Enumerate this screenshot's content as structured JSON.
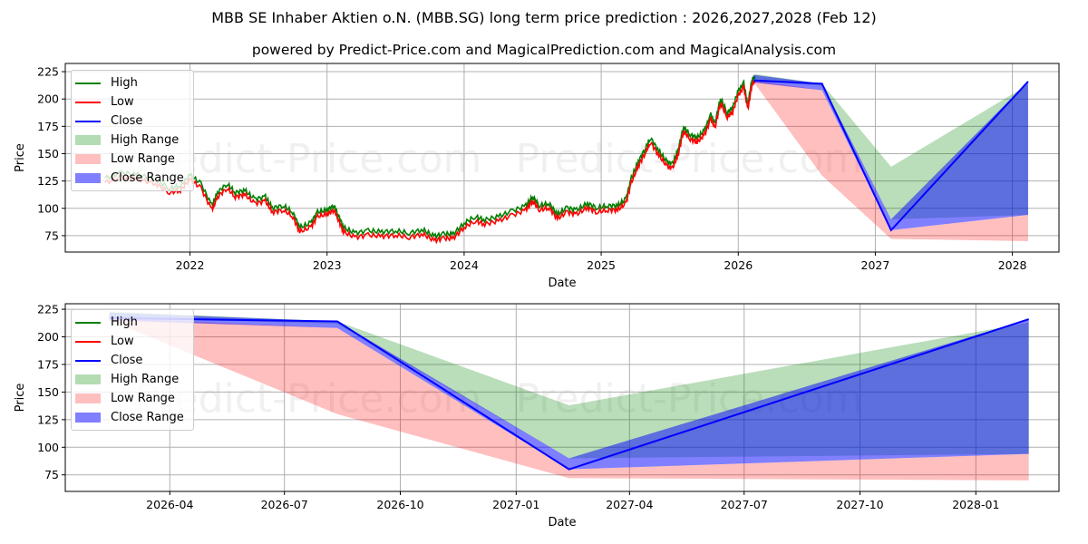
{
  "chart_data": [
    {
      "type": "line",
      "title": "MBB SE Inhaber Aktien o.N. (MBB.SG) long term price prediction : 2026,2027,2028 (Feb 12)",
      "subtitle": "powered by Predict-Price.com and MagicalPrediction.com and MagicalAnalysis.com",
      "watermark": "Predict-Price.com",
      "xlabel": "Date",
      "ylabel": "Price",
      "xlim": [
        2021.09,
        2028.34
      ],
      "ylim": [
        60,
        232.5
      ],
      "xticks": [
        {
          "v": 2022,
          "label": "2022"
        },
        {
          "v": 2023,
          "label": "2023"
        },
        {
          "v": 2024,
          "label": "2024"
        },
        {
          "v": 2025,
          "label": "2025"
        },
        {
          "v": 2026,
          "label": "2026"
        },
        {
          "v": 2027,
          "label": "2027"
        },
        {
          "v": 2028,
          "label": "2028"
        }
      ],
      "yticks": [
        75,
        100,
        125,
        150,
        175,
        200,
        225
      ],
      "grid": true,
      "legend_position": "top-left",
      "history": [
        [
          2021.38,
          125
        ],
        [
          2021.5,
          130
        ],
        [
          2021.62,
          128
        ],
        [
          2021.75,
          124
        ],
        [
          2021.85,
          116
        ],
        [
          2021.93,
          118
        ],
        [
          2022.0,
          128
        ],
        [
          2022.08,
          120
        ],
        [
          2022.16,
          100
        ],
        [
          2022.2,
          112
        ],
        [
          2022.27,
          120
        ],
        [
          2022.33,
          112
        ],
        [
          2022.4,
          114
        ],
        [
          2022.47,
          106
        ],
        [
          2022.55,
          108
        ],
        [
          2022.6,
          98
        ],
        [
          2022.68,
          100
        ],
        [
          2022.75,
          94
        ],
        [
          2022.8,
          80
        ],
        [
          2022.88,
          84
        ],
        [
          2022.93,
          94
        ],
        [
          2023.0,
          96
        ],
        [
          2023.05,
          100
        ],
        [
          2023.08,
          92
        ],
        [
          2023.12,
          80
        ],
        [
          2023.2,
          75
        ],
        [
          2023.3,
          77
        ],
        [
          2023.4,
          76
        ],
        [
          2023.5,
          77
        ],
        [
          2023.6,
          75
        ],
        [
          2023.7,
          78
        ],
        [
          2023.78,
          72
        ],
        [
          2023.85,
          74
        ],
        [
          2023.92,
          74
        ],
        [
          2024.0,
          84
        ],
        [
          2024.08,
          90
        ],
        [
          2024.15,
          87
        ],
        [
          2024.25,
          90
        ],
        [
          2024.35,
          95
        ],
        [
          2024.45,
          100
        ],
        [
          2024.5,
          108
        ],
        [
          2024.55,
          100
        ],
        [
          2024.62,
          102
        ],
        [
          2024.68,
          92
        ],
        [
          2024.75,
          98
        ],
        [
          2024.82,
          96
        ],
        [
          2024.9,
          102
        ],
        [
          2024.97,
          98
        ],
        [
          2025.05,
          100
        ],
        [
          2025.12,
          100
        ],
        [
          2025.18,
          106
        ],
        [
          2025.22,
          125
        ],
        [
          2025.27,
          140
        ],
        [
          2025.32,
          152
        ],
        [
          2025.36,
          162
        ],
        [
          2025.42,
          150
        ],
        [
          2025.48,
          140
        ],
        [
          2025.52,
          138
        ],
        [
          2025.56,
          150
        ],
        [
          2025.6,
          172
        ],
        [
          2025.65,
          165
        ],
        [
          2025.7,
          162
        ],
        [
          2025.75,
          168
        ],
        [
          2025.8,
          183
        ],
        [
          2025.83,
          175
        ],
        [
          2025.87,
          198
        ],
        [
          2025.92,
          185
        ],
        [
          2025.96,
          190
        ],
        [
          2026.0,
          205
        ],
        [
          2026.04,
          212
        ],
        [
          2026.07,
          192
        ],
        [
          2026.1,
          215
        ],
        [
          2026.12,
          218
        ]
      ],
      "prediction": {
        "dates": [
          "2026-02-12",
          "2026-08-12",
          "2027-02-12",
          "2028-02-12"
        ],
        "close": [
          217,
          214,
          80,
          216
        ],
        "close_range": [
          [
            215,
            222
          ],
          [
            208,
            214
          ],
          [
            80,
            90
          ],
          [
            94,
            216
          ]
        ],
        "high_range": [
          [
            217,
            223
          ],
          [
            212,
            214
          ],
          [
            90,
            138
          ],
          [
            94,
            213
          ]
        ],
        "low_range": [
          [
            215,
            217
          ],
          [
            130,
            208
          ],
          [
            72,
            80
          ],
          [
            70,
            94
          ]
        ]
      }
    },
    {
      "type": "line",
      "xlabel": "Date",
      "ylabel": "Price",
      "xlim": [
        "2026-01-08",
        "2028-03-07"
      ],
      "ylim": [
        60,
        230
      ],
      "xticks": [
        "2026-04",
        "2026-07",
        "2026-10",
        "2027-01",
        "2027-04",
        "2027-07",
        "2027-10",
        "2028-01"
      ],
      "yticks": [
        75,
        100,
        125,
        150,
        175,
        200,
        225
      ],
      "grid": true,
      "legend_position": "top-left"
    }
  ],
  "legend": {
    "items": [
      {
        "label": "High",
        "kind": "line",
        "color": "#008000"
      },
      {
        "label": "Low",
        "kind": "line",
        "color": "#ff0000"
      },
      {
        "label": "Close",
        "kind": "line",
        "color": "#0000ff"
      },
      {
        "label": "High Range",
        "kind": "patch",
        "color": "#b3dcb3"
      },
      {
        "label": "Low Range",
        "kind": "patch",
        "color": "#ffbfbf"
      },
      {
        "label": "Close Range",
        "kind": "patch",
        "color": "#7f7fff"
      }
    ]
  }
}
